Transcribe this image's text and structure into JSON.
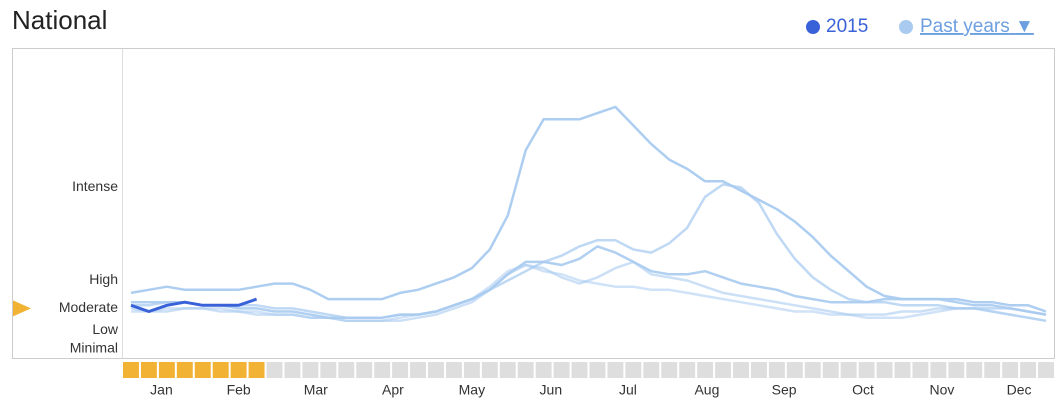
{
  "chart_data": {
    "type": "line",
    "title": "National",
    "dropdown_arrow": "▼",
    "xlim": [
      0,
      52
    ],
    "xticks": [
      {
        "value": 2.2,
        "label": "Jan"
      },
      {
        "value": 6.5,
        "label": "Feb"
      },
      {
        "value": 10.8,
        "label": "Mar"
      },
      {
        "value": 15.1,
        "label": "Apr"
      },
      {
        "value": 19.5,
        "label": "May"
      },
      {
        "value": 23.9,
        "label": "Jun"
      },
      {
        "value": 28.2,
        "label": "Jul"
      },
      {
        "value": 32.6,
        "label": "Aug"
      },
      {
        "value": 36.9,
        "label": "Sep"
      },
      {
        "value": 41.3,
        "label": "Oct"
      },
      {
        "value": 45.7,
        "label": "Nov"
      },
      {
        "value": 50.0,
        "label": "Dec"
      }
    ],
    "ylim": [
      0,
      100
    ],
    "yticks": [
      {
        "value": 3,
        "label": "Minimal"
      },
      {
        "value": 9,
        "label": "Low"
      },
      {
        "value": 16,
        "label": "Moderate"
      },
      {
        "value": 25,
        "label": "High"
      },
      {
        "value": 55,
        "label": "Intense"
      }
    ],
    "x": [
      0.5,
      1.5,
      2.5,
      3.5,
      4.5,
      5.5,
      6.5,
      7.5,
      8.5,
      9.5,
      10.5,
      11.5,
      12.5,
      13.5,
      14.5,
      15.5,
      16.5,
      17.5,
      18.5,
      19.5,
      20.5,
      21.5,
      22.5,
      23.5,
      24.5,
      25.5,
      26.5,
      27.5,
      28.5,
      29.5,
      30.5,
      31.5,
      32.5,
      33.5,
      34.5,
      35.5,
      36.5,
      37.5,
      38.5,
      39.5,
      40.5,
      41.5,
      42.5,
      43.5,
      44.5,
      45.5,
      46.5,
      47.5,
      48.5,
      49.5,
      50.5,
      51.5
    ],
    "series": [
      {
        "name": "2015",
        "color": "#3a62d8",
        "values": [
          17,
          15,
          17,
          18,
          17,
          17,
          17,
          19,
          null,
          null,
          null,
          null,
          null,
          null,
          null,
          null,
          null,
          null,
          null,
          null,
          null,
          null,
          null,
          null,
          null,
          null,
          null,
          null,
          null,
          null,
          null,
          null,
          null,
          null,
          null,
          null,
          null,
          null,
          null,
          null,
          null,
          null,
          null,
          null,
          null,
          null,
          null,
          null,
          null,
          null,
          null,
          null
        ]
      },
      {
        "name": "Past years",
        "color": "#a9cbf0",
        "lines": [
          [
            21,
            22,
            23,
            22,
            22,
            22,
            22,
            23,
            24,
            24,
            22,
            19,
            19,
            19,
            19,
            21,
            22,
            24,
            26,
            29,
            35,
            46,
            67,
            77,
            77,
            77,
            79,
            81,
            75,
            69,
            64,
            61,
            57,
            57,
            54,
            51,
            48,
            44,
            39,
            33,
            28,
            23,
            20,
            19,
            19,
            19,
            19,
            18,
            18,
            17,
            17,
            15
          ],
          [
            17,
            17,
            18,
            18,
            17,
            17,
            17,
            17,
            16,
            16,
            15,
            14,
            13,
            13,
            13,
            14,
            14,
            15,
            17,
            19,
            22,
            25,
            28,
            31,
            33,
            36,
            38,
            38,
            35,
            34,
            37,
            42,
            52,
            56,
            55,
            50,
            40,
            32,
            26,
            22,
            19,
            18,
            18,
            17,
            17,
            17,
            16,
            16,
            16,
            16,
            15,
            14
          ],
          [
            18,
            18,
            18,
            18,
            17,
            17,
            16,
            16,
            15,
            15,
            14,
            13,
            13,
            13,
            13,
            14,
            14,
            15,
            17,
            19,
            22,
            27,
            31,
            31,
            30,
            32,
            36,
            34,
            31,
            28,
            27,
            27,
            28,
            26,
            24,
            23,
            22,
            20,
            19,
            18,
            18,
            18,
            19,
            19,
            19,
            19,
            18,
            17,
            17,
            16,
            15,
            14
          ],
          [
            16,
            15,
            15,
            16,
            16,
            15,
            15,
            14,
            14,
            14,
            13,
            13,
            12,
            12,
            12,
            12,
            13,
            14,
            16,
            18,
            22,
            27,
            30,
            29,
            26,
            24,
            26,
            29,
            31,
            27,
            26,
            25,
            23,
            21,
            20,
            19,
            18,
            17,
            16,
            15,
            14,
            14,
            14,
            15,
            15,
            16,
            16,
            16,
            15,
            14,
            13,
            12
          ],
          [
            15,
            15,
            16,
            16,
            16,
            16,
            15,
            15,
            14,
            14,
            13,
            13,
            12,
            12,
            12,
            13,
            14,
            15,
            17,
            19,
            23,
            28,
            30,
            28,
            27,
            25,
            24,
            23,
            23,
            22,
            22,
            21,
            20,
            19,
            18,
            17,
            16,
            15,
            15,
            14,
            14,
            13,
            13,
            13,
            14,
            15,
            16,
            16,
            15,
            14,
            13,
            12
          ]
        ]
      }
    ]
  }
}
